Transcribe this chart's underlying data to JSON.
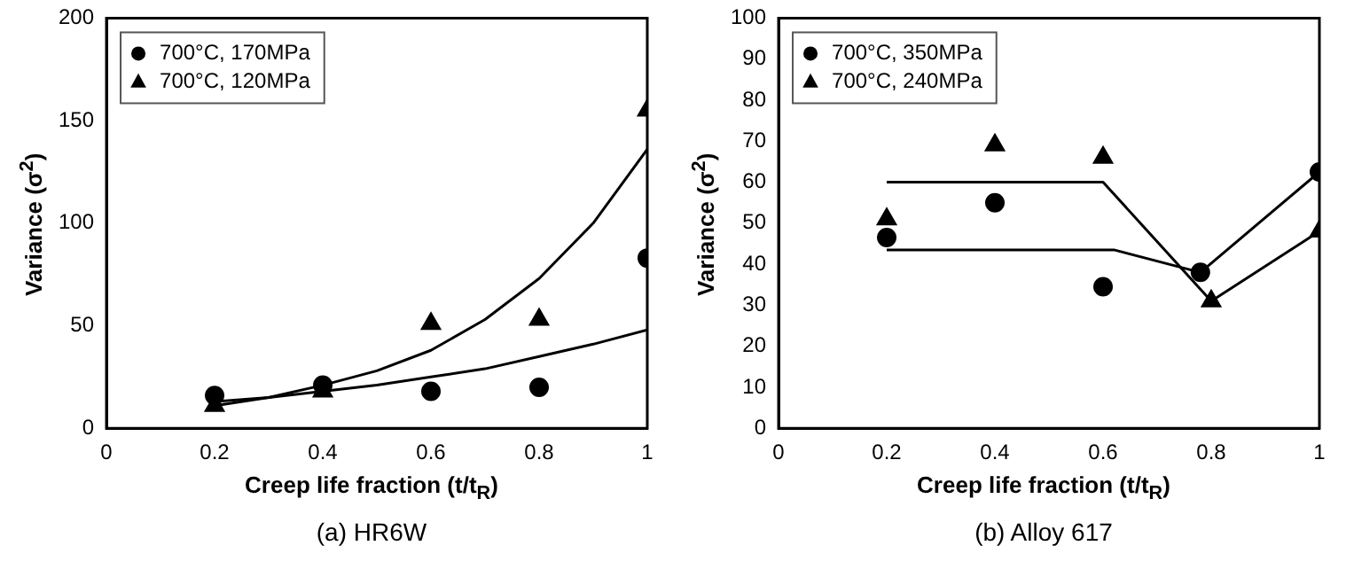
{
  "chart_data": [
    {
      "type": "scatter",
      "title": "(a) HR6W",
      "xlabel": "Creep life fraction (t/t$_{R}$)",
      "ylabel": "Variance (σ$^{2}$)",
      "xlim": [
        0,
        1
      ],
      "xticks": [
        0,
        0.2,
        0.4,
        0.6,
        0.8,
        1
      ],
      "ylim": [
        0,
        200
      ],
      "yticks": [
        0,
        50,
        100,
        150,
        200
      ],
      "grid": false,
      "legend": "top left",
      "series": [
        {
          "name": "700°C, 170MPa",
          "type": "scatter",
          "color": "#000000",
          "marker": "circle",
          "x": [
            0.2,
            0.4,
            0.6,
            0.8,
            1
          ],
          "values": [
            16,
            21,
            18,
            20,
            83
          ]
        },
        {
          "name": "700°C, 120MPa",
          "type": "scatter",
          "color": "#000000",
          "marker": "triangle",
          "x": [
            0.2,
            0.4,
            0.6,
            0.8,
            1
          ],
          "values": [
            11,
            18,
            51,
            53,
            155
          ]
        },
        {
          "type": "line",
          "color": "#000000",
          "marker": "none",
          "x": [
            0.2,
            0.3,
            0.4,
            0.5,
            0.6,
            0.7,
            0.8,
            0.9,
            1
          ],
          "values": [
            13,
            15,
            18,
            21,
            25,
            29,
            35,
            41,
            48
          ]
        },
        {
          "type": "line",
          "color": "#000000",
          "marker": "none",
          "x": [
            0.2,
            0.3,
            0.4,
            0.5,
            0.6,
            0.7,
            0.8,
            0.9,
            1
          ],
          "values": [
            11,
            15,
            21,
            28,
            38,
            53,
            73,
            100,
            136
          ]
        }
      ]
    },
    {
      "type": "scatter",
      "title": "(b) Alloy 617",
      "xlabel": "Creep life fraction (t/t$_{R}$)",
      "ylabel": "Variance (σ$^{2}$)",
      "xlim": [
        0,
        1
      ],
      "xticks": [
        0,
        0.2,
        0.4,
        0.6,
        0.8,
        1
      ],
      "ylim": [
        0,
        100
      ],
      "yticks": [
        0,
        10,
        20,
        30,
        40,
        50,
        60,
        70,
        80,
        90,
        100
      ],
      "grid": false,
      "legend": "top left",
      "series": [
        {
          "name": "700°C, 350MPa",
          "type": "scatter",
          "color": "#000000",
          "marker": "circle",
          "x": [
            0.2,
            0.4,
            0.6,
            0.78,
            1
          ],
          "values": [
            46.5,
            55,
            34.5,
            38,
            62.5
          ]
        },
        {
          "name": "700°C, 240MPa",
          "type": "scatter",
          "color": "#000000",
          "marker": "triangle",
          "x": [
            0.2,
            0.4,
            0.6,
            0.8,
            1
          ],
          "values": [
            51,
            69,
            66,
            31,
            48
          ]
        },
        {
          "type": "line",
          "color": "#000000",
          "marker": "none",
          "x": [
            0.2,
            0.62,
            0.78,
            1
          ],
          "values": [
            43.5,
            43.5,
            38,
            62.5
          ]
        },
        {
          "type": "line",
          "color": "#000000",
          "marker": "none",
          "x": [
            0.2,
            0.6,
            0.8,
            1
          ],
          "values": [
            60,
            60,
            31,
            48
          ]
        }
      ]
    }
  ]
}
